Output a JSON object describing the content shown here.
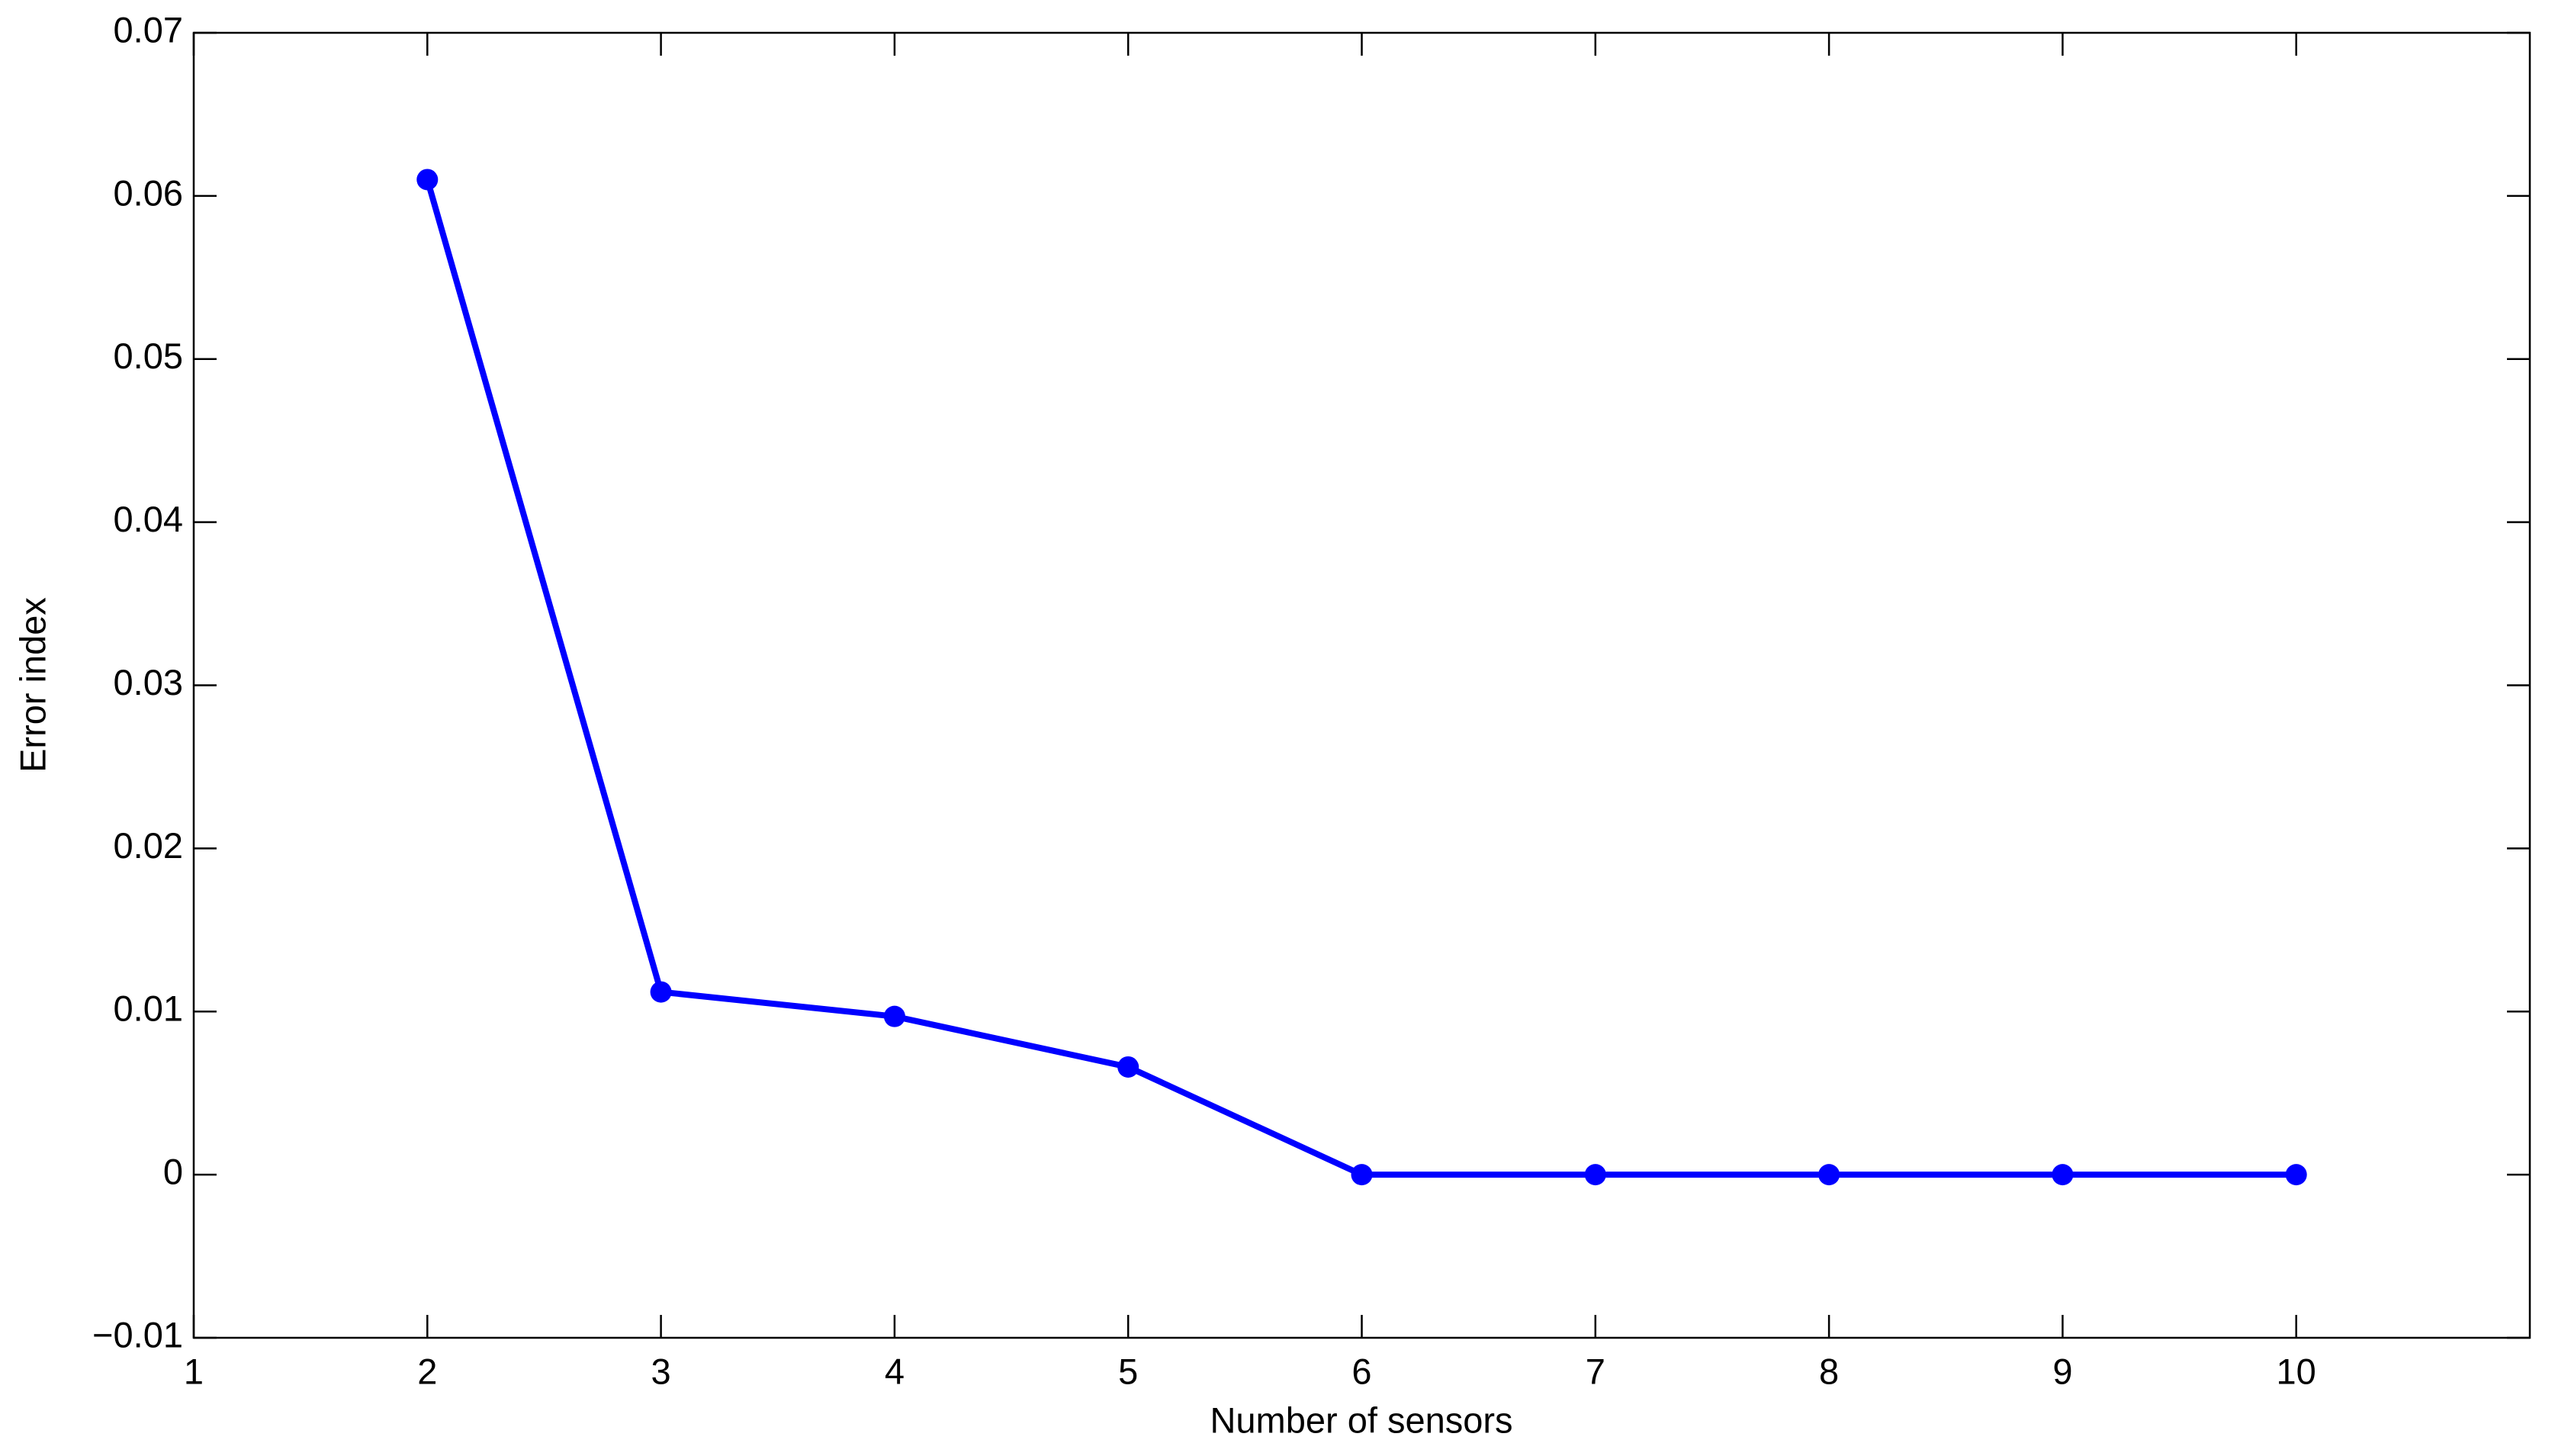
{
  "chart_data": {
    "type": "line",
    "xlabel": "Number of sensors",
    "ylabel": "Error index",
    "x": [
      2,
      3,
      4,
      5,
      6,
      7,
      8,
      9,
      10
    ],
    "series": [
      {
        "color": "#0000ff",
        "values": [
          0.061,
          0.0112,
          0.0097,
          0.0066,
          0,
          0,
          0,
          0,
          0
        ]
      }
    ],
    "xlim": [
      1,
      11
    ],
    "xticks": [
      1,
      2,
      3,
      4,
      5,
      6,
      7,
      8,
      9,
      10
    ],
    "ylim": [
      -0.01,
      0.07
    ],
    "yticks": [
      {
        "value": -0.01,
        "label": "−0.01"
      },
      0,
      0.01,
      0.02,
      0.03,
      0.04,
      0.05,
      0.06,
      0.07
    ]
  }
}
